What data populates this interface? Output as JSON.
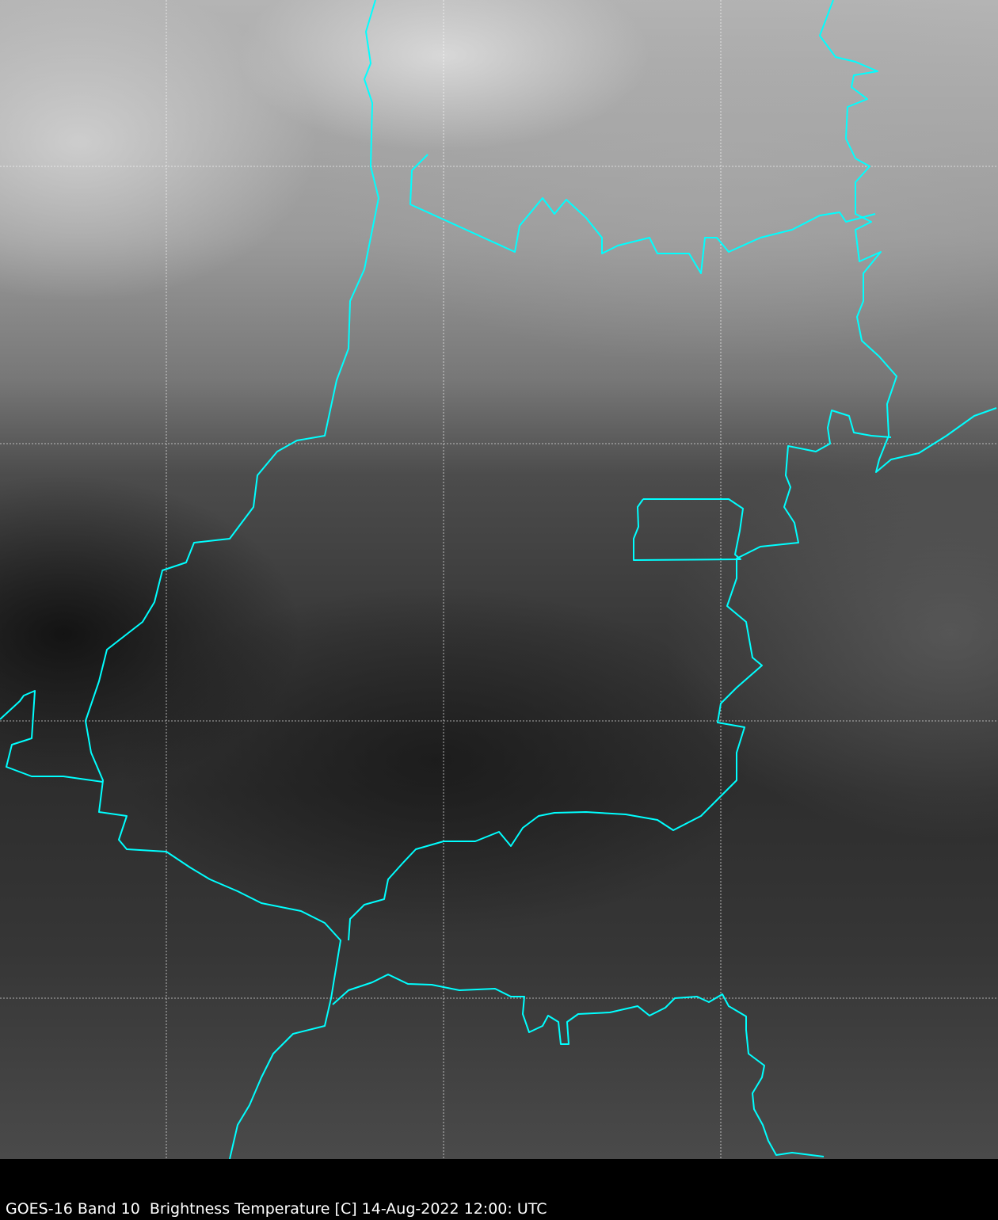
{
  "image": {
    "caption": "GOES-16 Band 10  Brightness Temperature [C] 14-Aug-2022 12:00: UTC",
    "border_color": "#00ffff",
    "grid_color": "#ffffff",
    "grid_style": "dashed"
  }
}
